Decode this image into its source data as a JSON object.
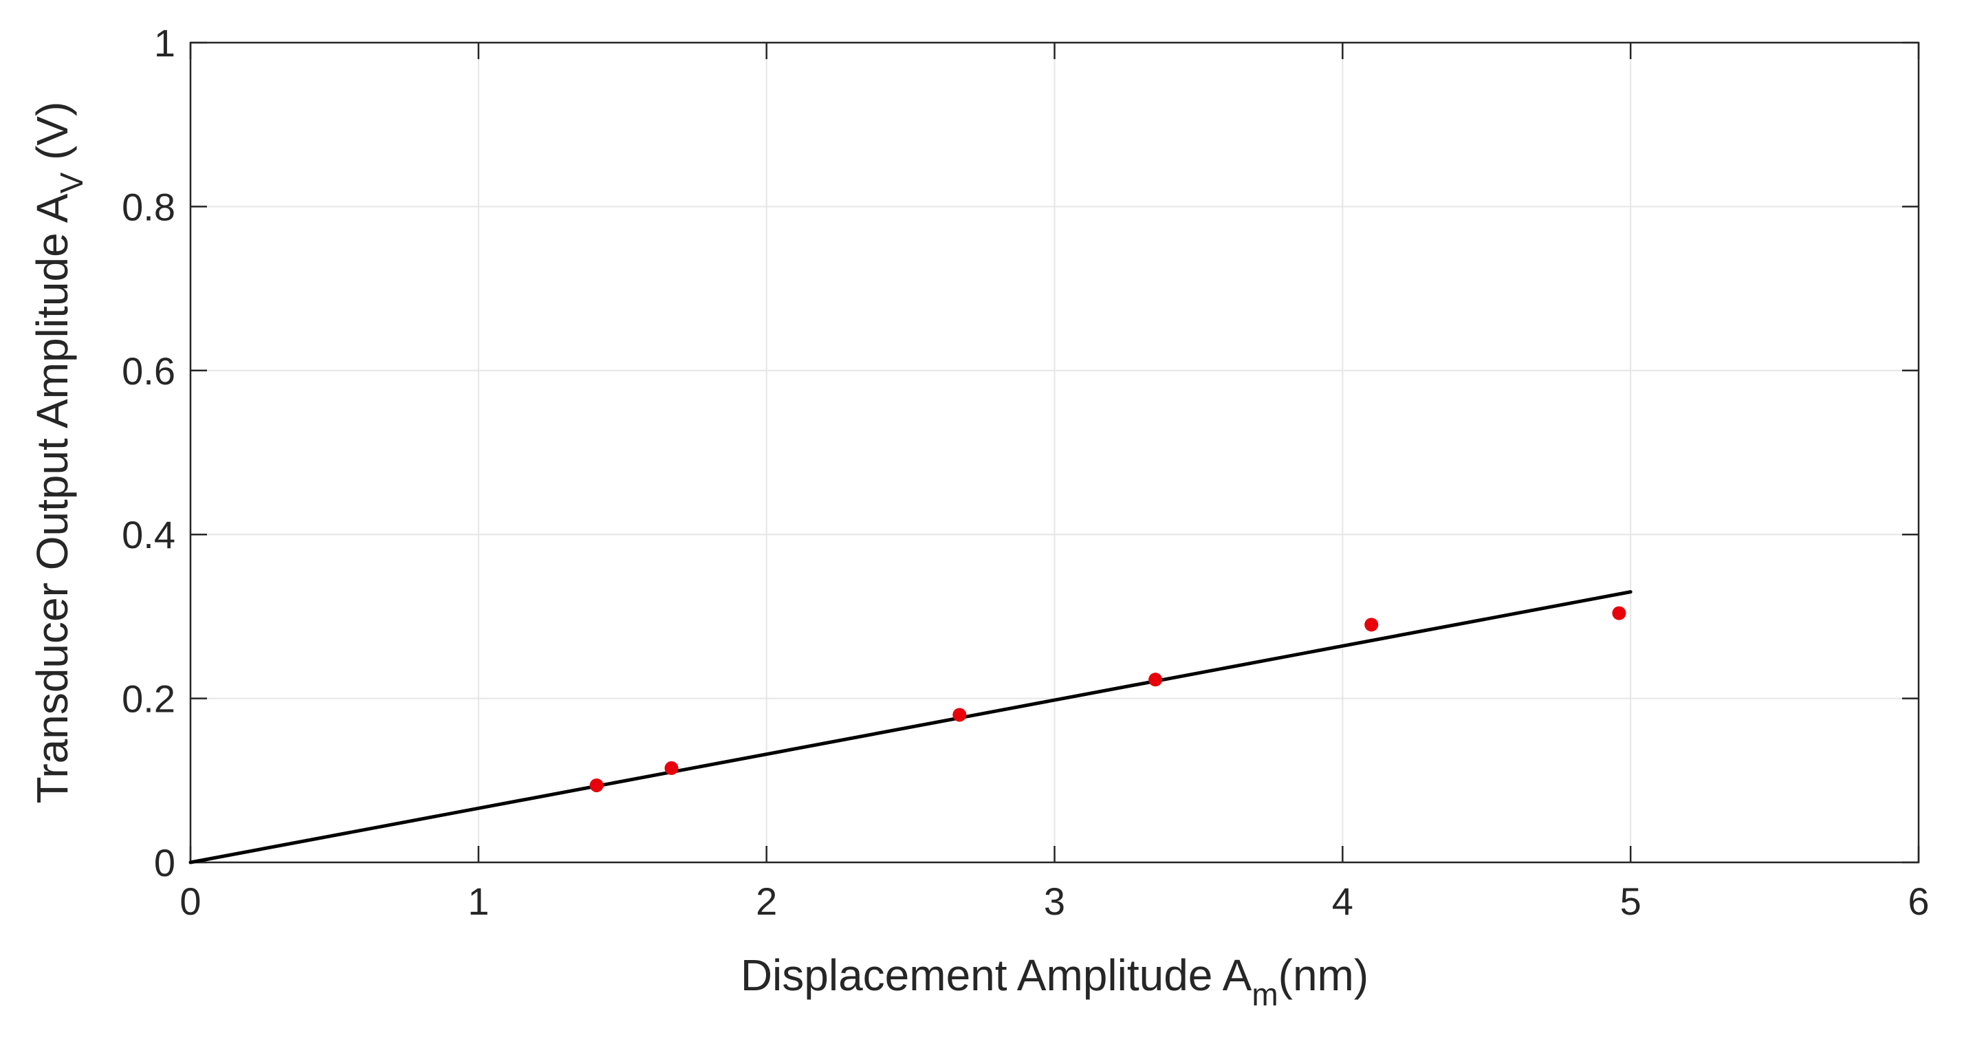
{
  "chart_data": {
    "type": "scatter",
    "title": "",
    "xlabel": {
      "prefix": "Displacement Amplitude A",
      "sub": "m",
      "suffix": "(nm)"
    },
    "ylabel": {
      "prefix": "Transducer Output Amplitude A",
      "sub": "V",
      "suffix": " (V)"
    },
    "xlim": [
      0,
      6
    ],
    "ylim": [
      0,
      1
    ],
    "x_ticks": [
      0,
      1,
      2,
      3,
      4,
      5,
      6
    ],
    "y_ticks": [
      0,
      0.2,
      0.4,
      0.6,
      0.8,
      1
    ],
    "x_tick_labels": [
      "0",
      "1",
      "2",
      "3",
      "4",
      "5",
      "6"
    ],
    "y_tick_labels": [
      "0",
      "0.2",
      "0.4",
      "0.6",
      "0.8",
      "1"
    ],
    "grid": true,
    "series": [
      {
        "kind": "scatter",
        "color": "#e8000b",
        "points": [
          {
            "x": 1.41,
            "y": 0.094
          },
          {
            "x": 1.67,
            "y": 0.115
          },
          {
            "x": 2.67,
            "y": 0.18
          },
          {
            "x": 3.35,
            "y": 0.223
          },
          {
            "x": 4.1,
            "y": 0.29
          },
          {
            "x": 4.96,
            "y": 0.304
          }
        ]
      },
      {
        "kind": "line",
        "color": "#000000",
        "points": [
          {
            "x": 0,
            "y": 0
          },
          {
            "x": 5.0,
            "y": 0.33
          }
        ]
      }
    ]
  }
}
